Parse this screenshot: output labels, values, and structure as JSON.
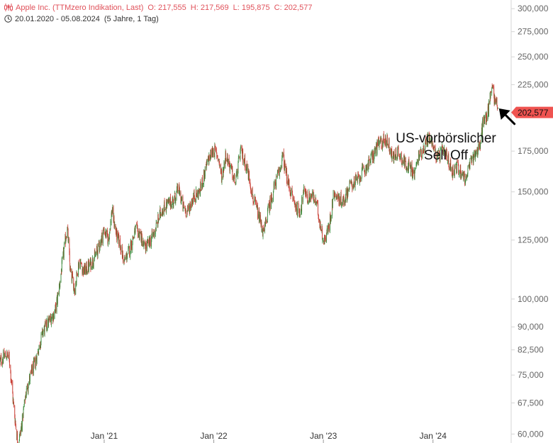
{
  "header": {
    "instrument": "Apple Inc. (TTMzero Indikation, Last)",
    "open": "O: 217,555",
    "high": "H: 217,569",
    "low": "L: 195,875",
    "close": "C: 202,577",
    "date_range": "20.01.2020 - 05.08.2024",
    "period": "(5 Jahre, 1 Tag)"
  },
  "colors": {
    "up": "#3c8a3c",
    "down": "#c8392f",
    "header_accent": "#e0525b",
    "last_price_badge": "#ef5350",
    "axis_text": "#666666",
    "axis_line": "#d5d5d5"
  },
  "chart_data": {
    "type": "candlestick",
    "scale": "log",
    "ylim": [
      58000,
      310000
    ],
    "xlim": [
      "2020-01-20",
      "2024-09-15"
    ],
    "y_ticks": [
      {
        "value": 300000,
        "label": "300,000"
      },
      {
        "value": 275000,
        "label": "275,000"
      },
      {
        "value": 250000,
        "label": "250,000"
      },
      {
        "value": 225000,
        "label": "225,000"
      },
      {
        "value": 175000,
        "label": "175,000"
      },
      {
        "value": 150000,
        "label": "150,000"
      },
      {
        "value": 125000,
        "label": "125,000"
      },
      {
        "value": 100000,
        "label": "100,000"
      },
      {
        "value": 90000,
        "label": "90,000"
      },
      {
        "value": 82500,
        "label": "82,500"
      },
      {
        "value": 75000,
        "label": "75,000"
      },
      {
        "value": 67500,
        "label": "67,500"
      },
      {
        "value": 60000,
        "label": "60,000"
      }
    ],
    "x_ticks": [
      {
        "date": "2021-01-01",
        "label": "Jan '21"
      },
      {
        "date": "2022-01-01",
        "label": "Jan '22"
      },
      {
        "date": "2023-01-01",
        "label": "Jan '23"
      },
      {
        "date": "2024-01-01",
        "label": "Jan '24"
      }
    ],
    "last_price": {
      "value": 202577,
      "label": "202,577"
    },
    "close_path": [
      [
        "2020-01-20",
        79000
      ],
      [
        "2020-02-10",
        81000
      ],
      [
        "2020-02-20",
        80000
      ],
      [
        "2020-03-05",
        67000
      ],
      [
        "2020-03-20",
        57500
      ],
      [
        "2020-04-01",
        62000
      ],
      [
        "2020-04-15",
        70000
      ],
      [
        "2020-05-01",
        75000
      ],
      [
        "2020-05-20",
        80000
      ],
      [
        "2020-06-10",
        88000
      ],
      [
        "2020-07-01",
        92000
      ],
      [
        "2020-07-20",
        95000
      ],
      [
        "2020-07-31",
        101000
      ],
      [
        "2020-08-15",
        115000
      ],
      [
        "2020-08-31",
        132000
      ],
      [
        "2020-09-10",
        111000
      ],
      [
        "2020-09-25",
        104000
      ],
      [
        "2020-10-10",
        116000
      ],
      [
        "2020-10-25",
        111000
      ],
      [
        "2020-11-10",
        113000
      ],
      [
        "2020-11-30",
        117000
      ],
      [
        "2020-12-15",
        122000
      ],
      [
        "2020-12-31",
        130000
      ],
      [
        "2021-01-15",
        125000
      ],
      [
        "2021-01-27",
        140000
      ],
      [
        "2021-02-10",
        128000
      ],
      [
        "2021-02-25",
        122000
      ],
      [
        "2021-03-08",
        115000
      ],
      [
        "2021-03-25",
        120000
      ],
      [
        "2021-04-15",
        130000
      ],
      [
        "2021-05-01",
        128000
      ],
      [
        "2021-05-15",
        121000
      ],
      [
        "2021-06-01",
        124000
      ],
      [
        "2021-06-20",
        130000
      ],
      [
        "2021-07-10",
        140000
      ],
      [
        "2021-07-30",
        143000
      ],
      [
        "2021-08-20",
        145000
      ],
      [
        "2021-09-05",
        152000
      ],
      [
        "2021-09-20",
        142000
      ],
      [
        "2021-10-05",
        139000
      ],
      [
        "2021-10-25",
        147000
      ],
      [
        "2021-11-15",
        150000
      ],
      [
        "2021-11-30",
        160000
      ],
      [
        "2021-12-15",
        170000
      ],
      [
        "2021-12-31",
        176000
      ],
      [
        "2022-01-15",
        172000
      ],
      [
        "2022-01-28",
        158000
      ],
      [
        "2022-02-10",
        173000
      ],
      [
        "2022-02-28",
        163000
      ],
      [
        "2022-03-14",
        155000
      ],
      [
        "2022-03-31",
        175000
      ],
      [
        "2022-04-15",
        168000
      ],
      [
        "2022-04-30",
        158000
      ],
      [
        "2022-05-12",
        146000
      ],
      [
        "2022-05-25",
        140000
      ],
      [
        "2022-06-16",
        128000
      ],
      [
        "2022-07-01",
        140000
      ],
      [
        "2022-07-20",
        152000
      ],
      [
        "2022-08-10",
        164000
      ],
      [
        "2022-08-18",
        172000
      ],
      [
        "2022-09-05",
        155000
      ],
      [
        "2022-09-30",
        142000
      ],
      [
        "2022-10-15",
        139000
      ],
      [
        "2022-10-31",
        152000
      ],
      [
        "2022-11-10",
        146000
      ],
      [
        "2022-11-25",
        148000
      ],
      [
        "2022-12-10",
        143000
      ],
      [
        "2022-12-20",
        134000
      ],
      [
        "2023-01-03",
        124000
      ],
      [
        "2023-01-20",
        132000
      ],
      [
        "2023-02-05",
        150000
      ],
      [
        "2023-02-20",
        146000
      ],
      [
        "2023-03-10",
        145000
      ],
      [
        "2023-03-31",
        154000
      ],
      [
        "2023-04-20",
        156000
      ],
      [
        "2023-05-05",
        160000
      ],
      [
        "2023-05-25",
        165000
      ],
      [
        "2023-06-15",
        172000
      ],
      [
        "2023-07-01",
        179000
      ],
      [
        "2023-07-20",
        182000
      ],
      [
        "2023-08-01",
        183000
      ],
      [
        "2023-08-20",
        170000
      ],
      [
        "2023-09-05",
        175000
      ],
      [
        "2023-09-25",
        168000
      ],
      [
        "2023-10-10",
        166000
      ],
      [
        "2023-10-30",
        160000
      ],
      [
        "2023-11-15",
        172000
      ],
      [
        "2023-12-01",
        177000
      ],
      [
        "2023-12-15",
        184000
      ],
      [
        "2023-12-29",
        182000
      ],
      [
        "2024-01-15",
        170000
      ],
      [
        "2024-01-31",
        175000
      ],
      [
        "2024-02-15",
        172000
      ],
      [
        "2024-03-05",
        162000
      ],
      [
        "2024-03-20",
        165000
      ],
      [
        "2024-04-10",
        160000
      ],
      [
        "2024-04-19",
        157000
      ],
      [
        "2024-05-01",
        165000
      ],
      [
        "2024-05-10",
        170000
      ],
      [
        "2024-05-25",
        175000
      ],
      [
        "2024-06-05",
        178000
      ],
      [
        "2024-06-15",
        195000
      ],
      [
        "2024-06-30",
        200000
      ],
      [
        "2024-07-10",
        215000
      ],
      [
        "2024-07-16",
        228000
      ],
      [
        "2024-07-25",
        210000
      ],
      [
        "2024-08-01",
        212000
      ],
      [
        "2024-08-05",
        202577
      ]
    ],
    "annotation": {
      "text": [
        "US-vorbörslicher",
        "Sell Off"
      ],
      "target_date": "2024-08-05",
      "target_value": 203000
    }
  }
}
